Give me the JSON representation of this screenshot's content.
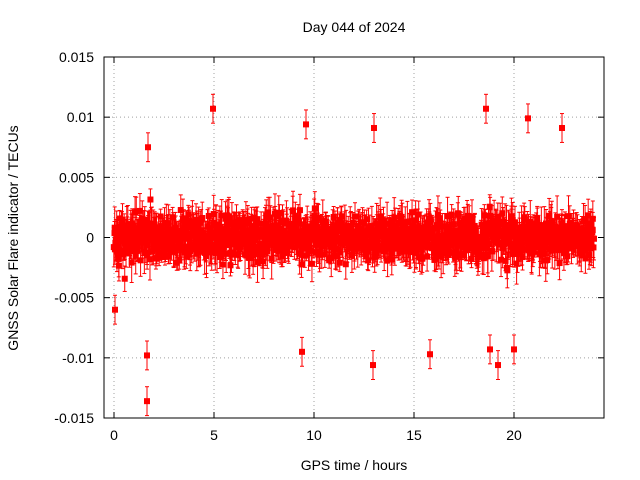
{
  "chart_data": {
    "type": "scatter",
    "title": "Day 044 of 2024",
    "xlabel": "GPS time / hours",
    "ylabel": "GNSS Solar Flare indicator / TECUs",
    "xlim": [
      -0.5,
      24.5
    ],
    "ylim": [
      -0.015,
      0.015
    ],
    "xticks": [
      0,
      5,
      10,
      15,
      20
    ],
    "xtick_labels": [
      "0",
      "5",
      "10",
      "15",
      "20"
    ],
    "yticks": [
      -0.015,
      -0.01,
      -0.005,
      0,
      0.005,
      0.01,
      0.015
    ],
    "ytick_labels": [
      "-0.015",
      "-0.01",
      "-0.005",
      "0",
      "0.005",
      "0.01",
      "0.015"
    ],
    "grid": true,
    "series": [
      {
        "name": "GNSS Solar Flare indicator",
        "color": "#ff0000",
        "marker": "square",
        "error_bars": true,
        "x_range": [
          0,
          24
        ],
        "typical_spread": [
          -0.005,
          0.005
        ],
        "outliers": [
          {
            "x": 0.05,
            "y": -0.006
          },
          {
            "x": 1.65,
            "y": -0.0136
          },
          {
            "x": 1.65,
            "y": -0.0098
          },
          {
            "x": 1.7,
            "y": 0.0075
          },
          {
            "x": 4.95,
            "y": 0.0107
          },
          {
            "x": 9.4,
            "y": -0.0095
          },
          {
            "x": 9.6,
            "y": 0.0094
          },
          {
            "x": 12.95,
            "y": -0.0106
          },
          {
            "x": 13.0,
            "y": 0.0091
          },
          {
            "x": 15.8,
            "y": -0.0097
          },
          {
            "x": 18.6,
            "y": 0.0107
          },
          {
            "x": 18.8,
            "y": -0.0093
          },
          {
            "x": 19.2,
            "y": -0.0106
          },
          {
            "x": 20.0,
            "y": -0.0093
          },
          {
            "x": 20.7,
            "y": 0.0099
          },
          {
            "x": 22.4,
            "y": 0.0091
          }
        ]
      }
    ]
  }
}
